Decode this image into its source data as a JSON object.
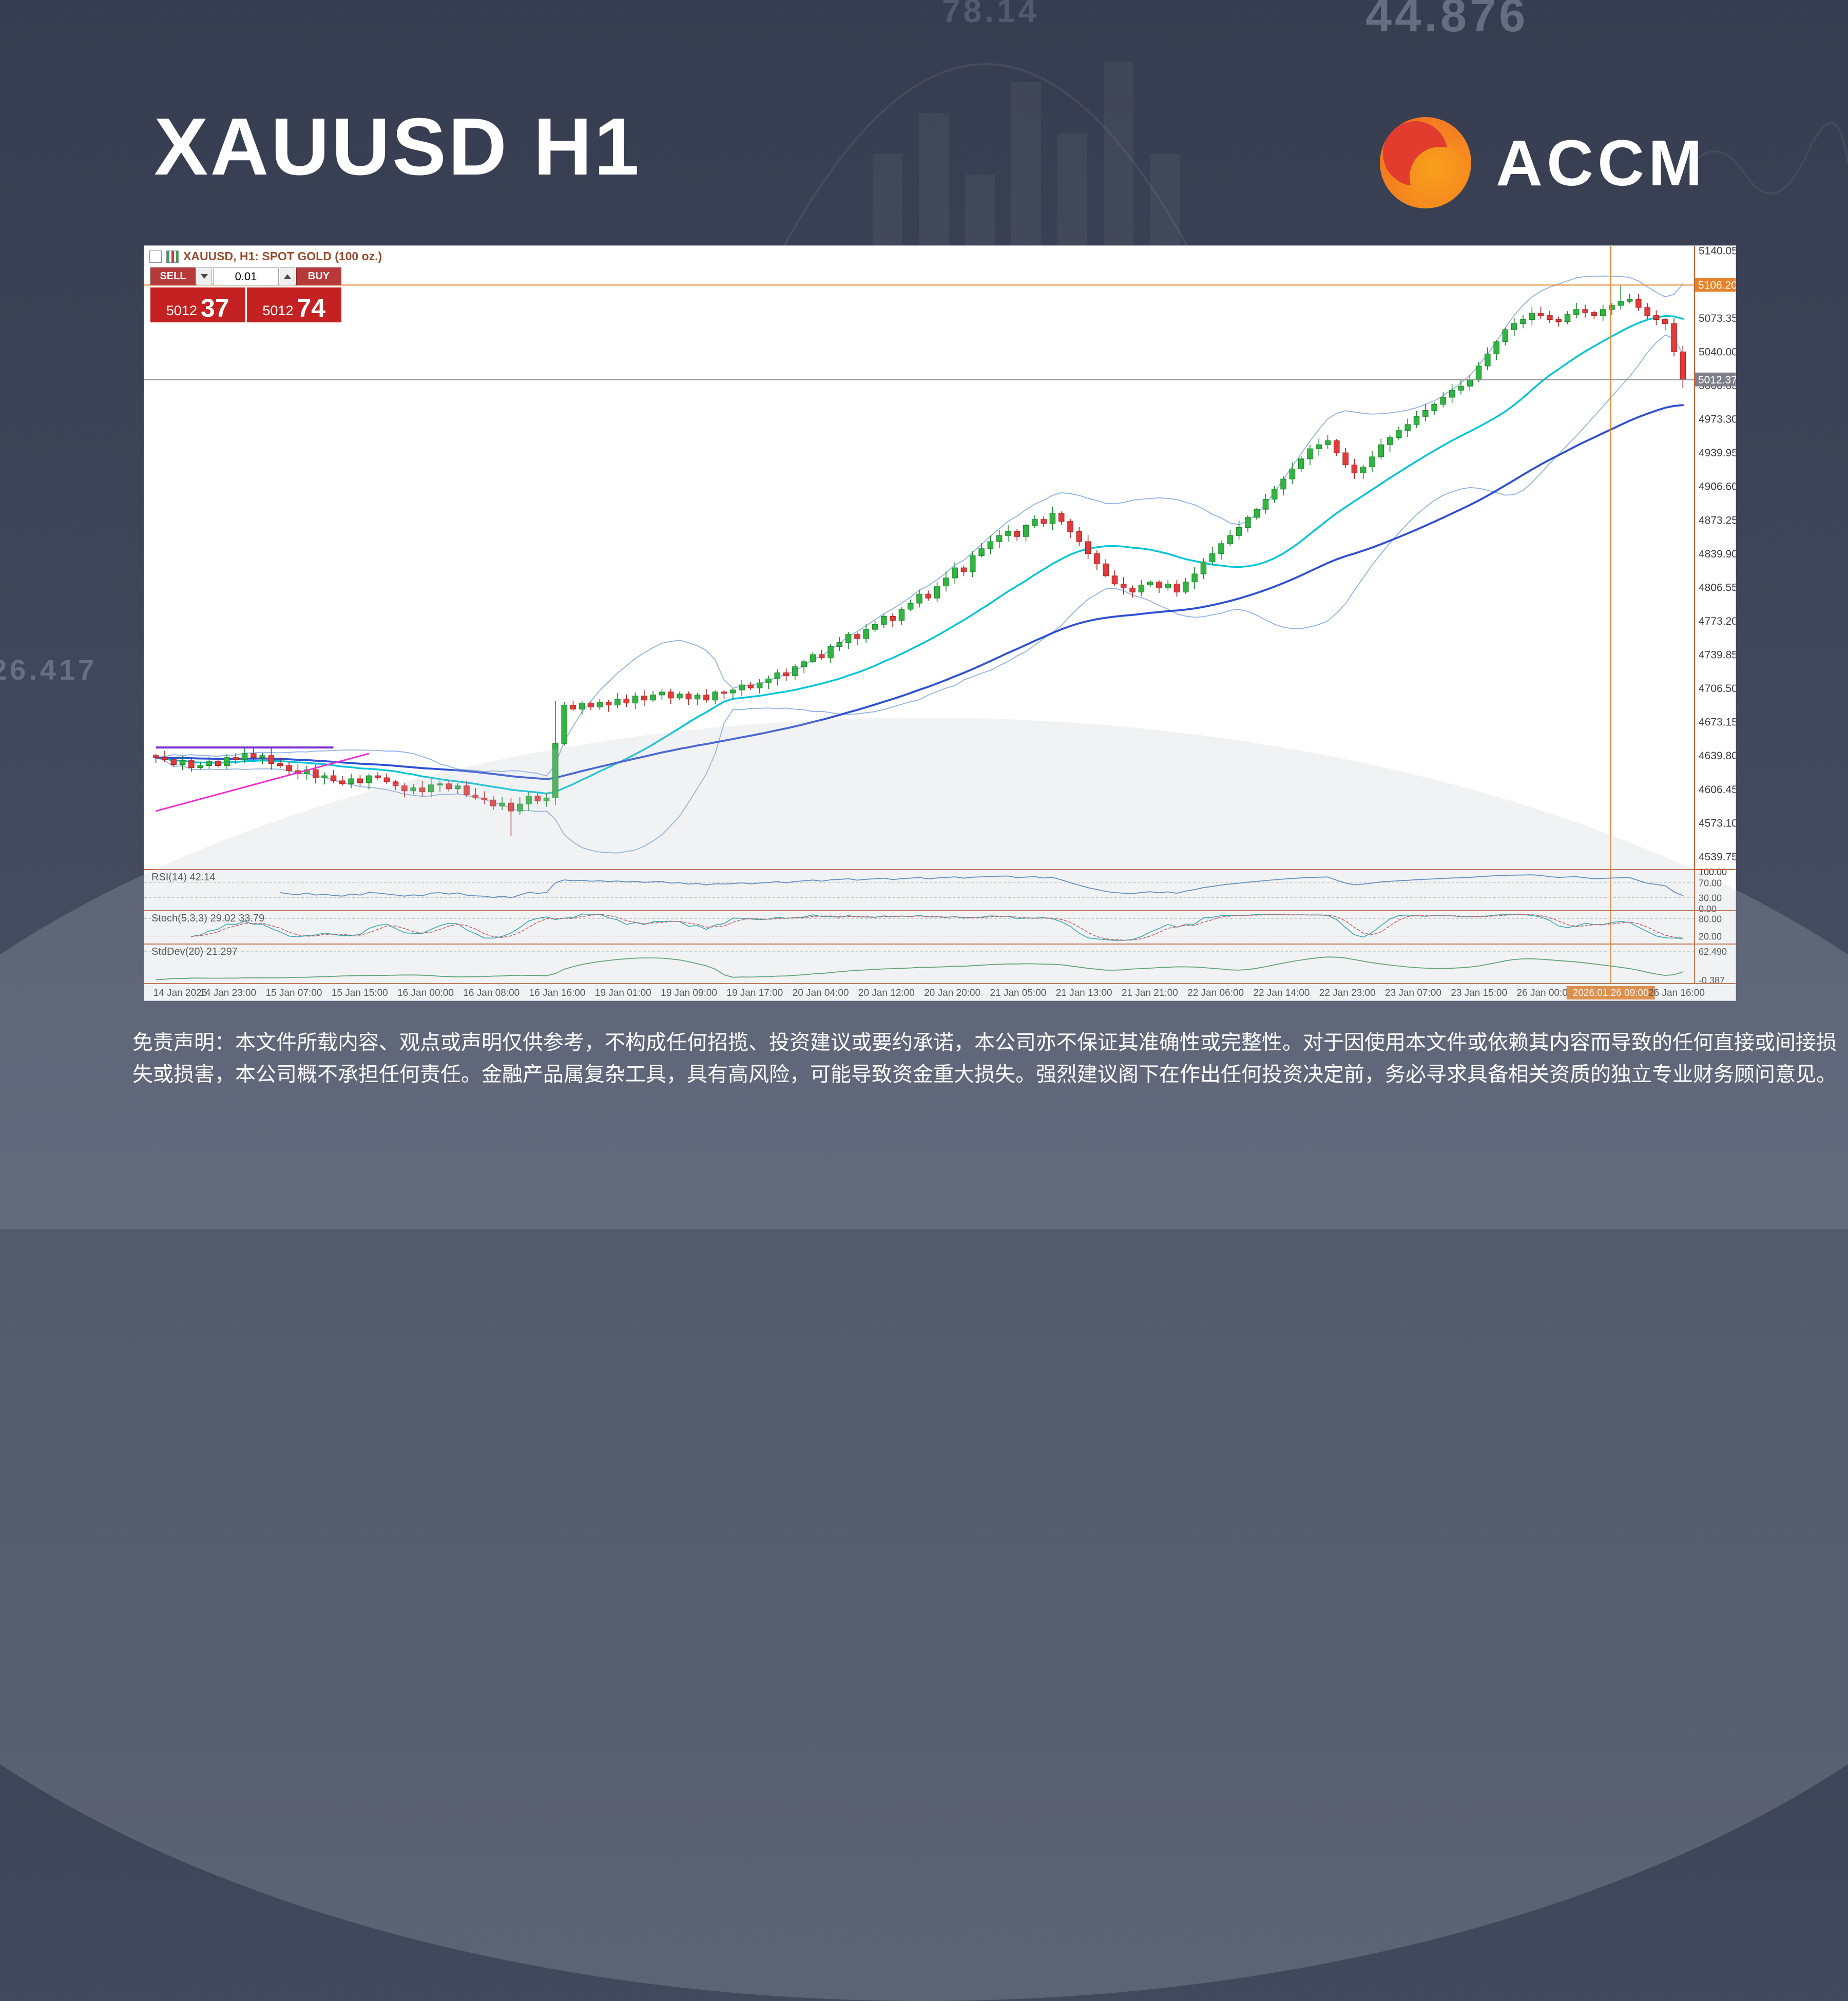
{
  "page": {
    "title": "XAUUSD H1",
    "brand": "ACCM",
    "bg_numbers": [
      "44.876",
      "78.14",
      "26.417"
    ],
    "disclaimer": "免责声明：本文件所载内容、观点或声明仅供参考，不构成任何招揽、投资建议或要约承诺，本公司亦不保证其准确性或完整性。对于因使用本文件或依赖其内容而导致的任何直接或间接损失或损害，本公司概不承担任何责任。金融产品属复杂工具，具有高风险，可能导致资金重大损失。强烈建议阁下在作出任何投资决定前，务必寻求具备相关资质的独立专业财务顾问意见。"
  },
  "window": {
    "symbol_title": "XAUUSD, H1:  SPOT GOLD (100 oz.)",
    "trade_panel": {
      "sell_label": "SELL",
      "buy_label": "BUY",
      "lot": "0.01",
      "sell_price_small": "5012",
      "sell_price_big": "37",
      "buy_price_small": "5012",
      "buy_price_big": "74"
    }
  },
  "chart_data": {
    "type": "candlestick",
    "symbol": "XAUUSD",
    "timeframe": "H1",
    "title": "XAUUSD, H1:  SPOT GOLD (100 oz.)",
    "ylim": [
      4527,
      5145
    ],
    "price_step": 33.35,
    "current_price": "5012.37",
    "highlight_price": "5106.20",
    "highlight_time": "2026.01.26 09:00",
    "highlight_time_index": 22,
    "price_axis": [
      "5140.05",
      "5106.70",
      "5073.35",
      "5040.00",
      "5006.65",
      "4973.30",
      "4939.95",
      "4906.60",
      "4873.25",
      "4839.90",
      "4806.55",
      "4773.20",
      "4739.85",
      "4706.50",
      "4673.15",
      "4639.80",
      "4606.45",
      "4573.10",
      "4539.75"
    ],
    "time_axis": [
      "14 Jan 2026",
      "14 Jan 23:00",
      "15 Jan 07:00",
      "15 Jan 15:00",
      "16 Jan 00:00",
      "16 Jan 08:00",
      "16 Jan 16:00",
      "19 Jan 01:00",
      "19 Jan 09:00",
      "19 Jan 17:00",
      "20 Jan 04:00",
      "20 Jan 12:00",
      "20 Jan 20:00",
      "21 Jan 05:00",
      "21 Jan 13:00",
      "21 Jan 21:00",
      "22 Jan 06:00",
      "22 Jan 14:00",
      "22 Jan 23:00",
      "23 Jan 07:00",
      "23 Jan 15:00",
      "26 Jan 00:00",
      "2026.01.26 09:00",
      "26 Jan 16:00"
    ],
    "start_open": 4640,
    "closes": [
      4638,
      4636,
      4631,
      4635,
      4628,
      4630,
      4634,
      4630,
      4638,
      4636,
      4642,
      4638,
      4640,
      4632,
      4630,
      4625,
      4622,
      4626,
      4618,
      4620,
      4615,
      4612,
      4617,
      4613,
      4620,
      4618,
      4614,
      4610,
      4605,
      4608,
      4604,
      4611,
      4612,
      4607,
      4610,
      4601,
      4598,
      4596,
      4590,
      4593,
      4585,
      4592,
      4600,
      4595,
      4598,
      4652,
      4690,
      4686,
      4692,
      4688,
      4693,
      4690,
      4696,
      4692,
      4699,
      4695,
      4700,
      4703,
      4697,
      4701,
      4696,
      4700,
      4695,
      4703,
      4702,
      4705,
      4710,
      4707,
      4712,
      4716,
      4722,
      4719,
      4728,
      4733,
      4740,
      4737,
      4748,
      4752,
      4760,
      4756,
      4765,
      4770,
      4778,
      4774,
      4785,
      4791,
      4800,
      4796,
      4808,
      4816,
      4826,
      4822,
      4838,
      4845,
      4852,
      4858,
      4862,
      4857,
      4868,
      4874,
      4870,
      4880,
      4872,
      4862,
      4852,
      4840,
      4830,
      4818,
      4810,
      4806,
      4802,
      4809,
      4812,
      4806,
      4810,
      4802,
      4812,
      4820,
      4832,
      4840,
      4850,
      4858,
      4866,
      4876,
      4884,
      4894,
      4904,
      4914,
      4924,
      4934,
      4944,
      4948,
      4952,
      4940,
      4928,
      4920,
      4926,
      4936,
      4948,
      4955,
      4962,
      4968,
      4976,
      4982,
      4988,
      4995,
      5002,
      5006,
      5012,
      5026,
      5038,
      5050,
      5062,
      5068,
      5072,
      5078,
      5076,
      5072,
      5070,
      5077,
      5082,
      5079,
      5076,
      5082,
      5086,
      5090,
      5092,
      5084,
      5076,
      5072,
      5068,
      5040,
      5012.37
    ],
    "special_wicks": {
      "40": {
        "low": 4560
      },
      "45": {
        "high": 4694
      },
      "165": {
        "high": 5106.2
      },
      "172": {
        "low": 5004
      }
    },
    "overlays": {
      "bollinger": {
        "period": 20,
        "deviation": 2
      },
      "ma_fast": {
        "period": 20
      },
      "ma_slow": {
        "period": 60
      },
      "trendlines": [
        {
          "name": "magenta-trendline",
          "from": [
            0,
            4585
          ],
          "to": [
            24,
            4642
          ],
          "color": "#f02fd0",
          "width": 3
        },
        {
          "name": "purple-level-segment",
          "from": [
            0,
            4648
          ],
          "to": [
            20,
            4648
          ],
          "color": "#7c2fd0",
          "width": 4
        }
      ]
    },
    "colors": {
      "up": "#32b342",
      "up_stroke": "#178a28",
      "down": "#e23b3b",
      "down_stroke": "#b51f1f",
      "bollinger": "#8fb0e0",
      "ma_fast": "#00c4d8",
      "ma_slow": "#2d4fd2",
      "crosshair": "#e8822a",
      "bid_line": "#8a8a8a",
      "separator": "#c2663a",
      "axis_text": "#3a3a3a",
      "current_badge": "#7f7f8a",
      "highlight_badge": "#e8822a"
    },
    "indicators": [
      {
        "id": "rsi",
        "label": "RSI(14) 42.14",
        "period": 14,
        "color": "#4f81bd",
        "levels": [
          {
            "value": 100,
            "text": "100.00"
          },
          {
            "value": 70,
            "text": "70.00",
            "dashed": true
          },
          {
            "value": 30,
            "text": "30.00",
            "dashed": true
          },
          {
            "value": 0,
            "text": "0.00"
          }
        ]
      },
      {
        "id": "stoch",
        "label": "Stoch(5,3,3) 29.02 33.79",
        "k": 5,
        "slowing": 3,
        "d": 3,
        "k_color": "#18a0a8",
        "d_color": "#c04848",
        "levels": [
          {
            "value": 80,
            "text": "80.00",
            "dashed": true
          },
          {
            "value": 20,
            "text": "20.00",
            "dashed": true
          }
        ]
      },
      {
        "id": "stddev",
        "label": "StdDev(20) 21.297",
        "period": 20,
        "color": "#4b9a5e",
        "levels": [
          {
            "value": 62.49,
            "text": "62.490",
            "dashed": true
          },
          {
            "value": -0.387,
            "text": "-0.387"
          }
        ]
      }
    ]
  }
}
